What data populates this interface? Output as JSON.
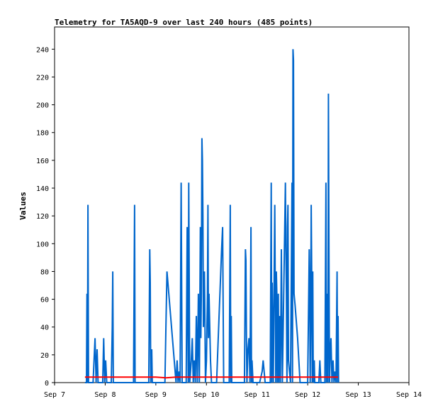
{
  "chart_data": {
    "type": "line",
    "title": "Telemetry for TA5AQD-9 over last 240 hours (485 points)",
    "xlabel": "",
    "ylabel": "Values",
    "x_ticks": [
      "Sep 7",
      "Sep 8",
      "Sep 9",
      "Sep 10",
      "Sep 11",
      "Sep 12",
      "Sep 13",
      "Sep 14"
    ],
    "xlim": [
      0,
      7
    ],
    "y_ticks": [
      0,
      20,
      40,
      60,
      80,
      100,
      120,
      140,
      160,
      180,
      200,
      220,
      240
    ],
    "ylim": [
      0,
      256
    ],
    "grid": false,
    "legend": "none",
    "colors": {
      "series_main": "#0066cc",
      "series_secondary": "#ff0000",
      "axis": "#000000"
    },
    "series": [
      {
        "color": "#0066cc",
        "points": [
          [
            0.6,
            0
          ],
          [
            0.63,
            0
          ],
          [
            0.64,
            64
          ],
          [
            0.65,
            0
          ],
          [
            0.66,
            128
          ],
          [
            0.67,
            0
          ],
          [
            0.76,
            0
          ],
          [
            0.78,
            16
          ],
          [
            0.8,
            32
          ],
          [
            0.82,
            0
          ],
          [
            0.84,
            24
          ],
          [
            0.86,
            0
          ],
          [
            0.95,
            0
          ],
          [
            0.97,
            32
          ],
          [
            0.99,
            0
          ],
          [
            1.01,
            16
          ],
          [
            1.03,
            0
          ],
          [
            1.12,
            0
          ],
          [
            1.14,
            40
          ],
          [
            1.15,
            80
          ],
          [
            1.16,
            0
          ],
          [
            1.4,
            0
          ],
          [
            1.42,
            0
          ],
          [
            1.56,
            0
          ],
          [
            1.58,
            128
          ],
          [
            1.59,
            0
          ],
          [
            1.86,
            0
          ],
          [
            1.88,
            96
          ],
          [
            1.89,
            72
          ],
          [
            1.9,
            0
          ],
          [
            1.92,
            24
          ],
          [
            1.93,
            0
          ],
          [
            2.18,
            0
          ],
          [
            2.2,
            40
          ],
          [
            2.22,
            80
          ],
          [
            2.4,
            0
          ],
          [
            2.42,
            16
          ],
          [
            2.44,
            0
          ],
          [
            2.46,
            8
          ],
          [
            2.48,
            0
          ],
          [
            2.5,
            144
          ],
          [
            2.52,
            0
          ],
          [
            2.6,
            0
          ],
          [
            2.62,
            112
          ],
          [
            2.64,
            0
          ],
          [
            2.65,
            144
          ],
          [
            2.66,
            72
          ],
          [
            2.67,
            0
          ],
          [
            2.7,
            16
          ],
          [
            2.72,
            32
          ],
          [
            2.74,
            0
          ],
          [
            2.76,
            16
          ],
          [
            2.78,
            0
          ],
          [
            2.8,
            48
          ],
          [
            2.82,
            0
          ],
          [
            2.84,
            64
          ],
          [
            2.86,
            0
          ],
          [
            2.88,
            112
          ],
          [
            2.89,
            32
          ],
          [
            2.9,
            64
          ],
          [
            2.91,
            176
          ],
          [
            2.92,
            160
          ],
          [
            2.93,
            120
          ],
          [
            2.94,
            40
          ],
          [
            2.95,
            64
          ],
          [
            2.96,
            80
          ],
          [
            2.97,
            48
          ],
          [
            2.98,
            0
          ],
          [
            3.0,
            16
          ],
          [
            3.02,
            64
          ],
          [
            3.03,
            128
          ],
          [
            3.04,
            32
          ],
          [
            3.05,
            64
          ],
          [
            3.06,
            48
          ],
          [
            3.08,
            16
          ],
          [
            3.1,
            0
          ],
          [
            3.2,
            0
          ],
          [
            3.25,
            48
          ],
          [
            3.3,
            96
          ],
          [
            3.32,
            112
          ],
          [
            3.34,
            0
          ],
          [
            3.45,
            0
          ],
          [
            3.47,
            128
          ],
          [
            3.48,
            0
          ],
          [
            3.49,
            48
          ],
          [
            3.5,
            0
          ],
          [
            3.6,
            0
          ],
          [
            3.62,
            0
          ],
          [
            3.75,
            0
          ],
          [
            3.77,
            96
          ],
          [
            3.78,
            88
          ],
          [
            3.79,
            32
          ],
          [
            3.8,
            0
          ],
          [
            3.82,
            24
          ],
          [
            3.84,
            32
          ],
          [
            3.86,
            0
          ],
          [
            3.88,
            112
          ],
          [
            3.89,
            0
          ],
          [
            3.9,
            16
          ],
          [
            3.92,
            0
          ],
          [
            4.05,
            0
          ],
          [
            4.1,
            8
          ],
          [
            4.12,
            16
          ],
          [
            4.14,
            8
          ],
          [
            4.16,
            0
          ],
          [
            4.26,
            0
          ],
          [
            4.28,
            144
          ],
          [
            4.29,
            0
          ],
          [
            4.3,
            72
          ],
          [
            4.32,
            0
          ],
          [
            4.35,
            128
          ],
          [
            4.36,
            64
          ],
          [
            4.37,
            0
          ],
          [
            4.38,
            80
          ],
          [
            4.39,
            64
          ],
          [
            4.4,
            0
          ],
          [
            4.42,
            64
          ],
          [
            4.43,
            0
          ],
          [
            4.45,
            48
          ],
          [
            4.46,
            0
          ],
          [
            4.48,
            96
          ],
          [
            4.5,
            0
          ],
          [
            4.56,
            144
          ],
          [
            4.57,
            96
          ],
          [
            4.58,
            64
          ],
          [
            4.59,
            0
          ],
          [
            4.6,
            112
          ],
          [
            4.61,
            128
          ],
          [
            4.62,
            16
          ],
          [
            4.64,
            8
          ],
          [
            4.66,
            0
          ],
          [
            4.68,
            96
          ],
          [
            4.69,
            144
          ],
          [
            4.7,
            0
          ],
          [
            4.71,
            240
          ],
          [
            4.72,
            232
          ],
          [
            4.73,
            64
          ],
          [
            4.75,
            56
          ],
          [
            4.8,
            32
          ],
          [
            4.85,
            0
          ],
          [
            4.87,
            0
          ],
          [
            5.0,
            0
          ],
          [
            5.02,
            64
          ],
          [
            5.03,
            96
          ],
          [
            5.04,
            64
          ],
          [
            5.05,
            0
          ],
          [
            5.06,
            48
          ],
          [
            5.07,
            128
          ],
          [
            5.08,
            72
          ],
          [
            5.09,
            0
          ],
          [
            5.1,
            80
          ],
          [
            5.11,
            0
          ],
          [
            5.12,
            8
          ],
          [
            5.13,
            16
          ],
          [
            5.14,
            0
          ],
          [
            5.22,
            0
          ],
          [
            5.24,
            16
          ],
          [
            5.26,
            0
          ],
          [
            5.34,
            0
          ],
          [
            5.36,
            144
          ],
          [
            5.37,
            0
          ],
          [
            5.38,
            40
          ],
          [
            5.39,
            64
          ],
          [
            5.4,
            0
          ],
          [
            5.41,
            208
          ],
          [
            5.42,
            104
          ],
          [
            5.43,
            0
          ],
          [
            5.44,
            16
          ],
          [
            5.46,
            32
          ],
          [
            5.48,
            0
          ],
          [
            5.5,
            16
          ],
          [
            5.52,
            0
          ],
          [
            5.54,
            8
          ],
          [
            5.56,
            0
          ],
          [
            5.58,
            80
          ],
          [
            5.59,
            0
          ],
          [
            5.6,
            48
          ],
          [
            5.61,
            0
          ]
        ]
      },
      {
        "color": "#ff0000",
        "points": [
          [
            0.6,
            4
          ],
          [
            1.0,
            4
          ],
          [
            1.4,
            4
          ],
          [
            1.8,
            4
          ],
          [
            2.0,
            4
          ],
          [
            2.2,
            3.5
          ],
          [
            2.4,
            4
          ],
          [
            2.8,
            4
          ],
          [
            3.2,
            4
          ],
          [
            3.6,
            4
          ],
          [
            4.0,
            4
          ],
          [
            4.4,
            4
          ],
          [
            4.8,
            4
          ],
          [
            5.2,
            4
          ],
          [
            5.6,
            4
          ]
        ]
      }
    ]
  }
}
